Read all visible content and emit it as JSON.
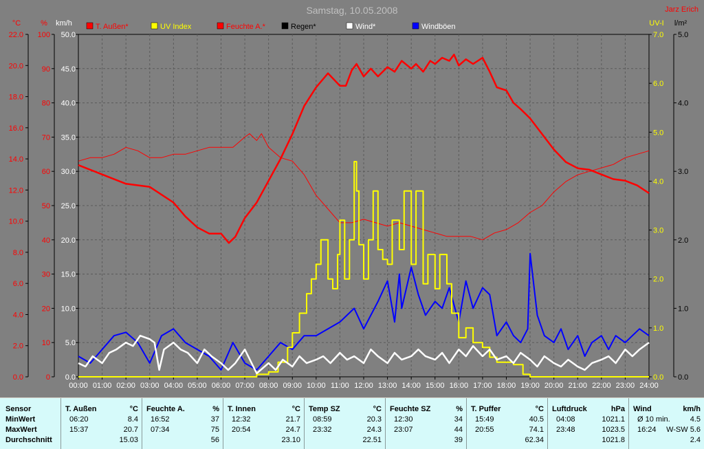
{
  "title": "Samstag, 10.05.2008",
  "author": "Jarz Erich",
  "colors": {
    "temp_out": "#ff0000",
    "uv": "#ffff00",
    "humidity": "#ff0000",
    "rain": "#000000",
    "wind": "#ffffff",
    "gusts": "#0000ff",
    "grid": "#5a5a5a",
    "plot_bg": "#808080"
  },
  "chart_data": {
    "type": "line",
    "title": "Samstag, 10.05.2008",
    "x_ticks": [
      "00:00",
      "01:00",
      "02:00",
      "03:00",
      "04:00",
      "05:00",
      "06:00",
      "07:00",
      "08:00",
      "09:00",
      "10:00",
      "11:00",
      "12:00",
      "13:00",
      "14:00",
      "15:00",
      "16:00",
      "17:00",
      "18:00",
      "19:00",
      "20:00",
      "21:00",
      "22:00",
      "23:00",
      "24:00"
    ],
    "axes": {
      "temp": {
        "unit_label": "°C",
        "ticks": [
          "22.0",
          "20.0",
          "18.0",
          "16.0",
          "14.0",
          "12.0",
          "10.0",
          "8.0",
          "6.0",
          "4.0",
          "2.0",
          "0.0"
        ],
        "range": [
          0,
          22
        ]
      },
      "humidity": {
        "unit_label": "%",
        "ticks": [
          "100",
          "90",
          "80",
          "70",
          "60",
          "50",
          "40",
          "30",
          "20",
          "10",
          "0"
        ],
        "range": [
          0,
          100
        ]
      },
      "wind": {
        "unit_label": "km/h",
        "ticks": [
          "50.0",
          "45.0",
          "40.0",
          "35.0",
          "30.0",
          "25.0",
          "20.0",
          "15.0",
          "10.0",
          "5.0",
          "0.0"
        ],
        "range": [
          0,
          50
        ]
      },
      "uv": {
        "unit_label": "UV-I",
        "ticks": [
          "7.0",
          "6.0",
          "5.0",
          "4.0",
          "3.0",
          "2.0",
          "1.0",
          "0.0"
        ],
        "range": [
          0,
          7
        ]
      },
      "rain": {
        "unit_label": "l/m²",
        "ticks": [
          "5.0",
          "4.0",
          "3.0",
          "2.0",
          "1.0",
          "0.0"
        ],
        "range": [
          0,
          5
        ]
      }
    },
    "legend": [
      {
        "name": "T. Außen*",
        "color": "#ff0000",
        "text_color": "#ff0000"
      },
      {
        "name": "UV Index",
        "color": "#ffff00",
        "text_color": "#ffff00"
      },
      {
        "name": "Feuchte A.*",
        "color": "#ff0000",
        "text_color": "#ff0000"
      },
      {
        "name": "Regen*",
        "color": "#000000",
        "text_color": "#000000"
      },
      {
        "name": "Wind*",
        "color": "#ffffff",
        "text_color": "#ffffff"
      },
      {
        "name": "Windböen",
        "color": "#0000ff",
        "text_color": "#ffffff"
      }
    ],
    "grid": true,
    "series": [
      {
        "name": "T. Außen*",
        "axis": "temp",
        "x_hours": [
          0,
          1,
          2,
          3,
          4,
          4.5,
          5,
          5.5,
          6,
          6.33,
          6.6,
          7,
          7.5,
          8,
          8.5,
          9,
          9.5,
          10,
          10.5,
          11,
          11.25,
          11.5,
          11.7,
          12,
          12.3,
          12.6,
          13,
          13.3,
          13.6,
          14,
          14.2,
          14.5,
          14.8,
          15,
          15.3,
          15.6,
          15.8,
          16,
          16.3,
          16.6,
          17,
          17.3,
          17.6,
          18,
          18.3,
          18.6,
          19,
          19.5,
          20,
          20.5,
          21,
          21.5,
          22,
          22.5,
          23,
          23.5,
          24
        ],
        "values": [
          13.6,
          13.0,
          12.4,
          12.2,
          11.2,
          10.3,
          9.6,
          9.2,
          9.2,
          8.6,
          9.0,
          10.2,
          11.2,
          12.6,
          14.0,
          15.6,
          17.4,
          18.6,
          19.5,
          18.7,
          18.7,
          19.7,
          20.1,
          19.3,
          19.8,
          19.3,
          19.9,
          19.6,
          20.3,
          19.8,
          20.1,
          19.6,
          20.3,
          20.1,
          20.5,
          20.3,
          20.7,
          20.0,
          20.4,
          20.1,
          20.5,
          19.6,
          18.6,
          18.4,
          17.6,
          17.2,
          16.6,
          15.6,
          14.6,
          13.8,
          13.4,
          13.3,
          13.0,
          12.7,
          12.6,
          12.3,
          11.8
        ]
      },
      {
        "name": "Feuchte A.*",
        "axis": "humidity",
        "x_hours": [
          0,
          0.5,
          1,
          1.5,
          2,
          2.5,
          3,
          3.5,
          4,
          4.5,
          5,
          5.5,
          6,
          6.5,
          7,
          7.2,
          7.5,
          7.7,
          8,
          8.5,
          9,
          9.5,
          10,
          10.5,
          11,
          11.5,
          12,
          12.5,
          13,
          13.5,
          14,
          14.5,
          15,
          15.5,
          16,
          16.5,
          17,
          17.5,
          18,
          18.5,
          19,
          19.5,
          20,
          20.5,
          21,
          21.5,
          22,
          22.5,
          23,
          23.5,
          24
        ],
        "values": [
          63,
          64,
          64,
          65,
          67,
          66,
          64,
          64,
          65,
          65,
          66,
          67,
          67,
          67,
          70,
          71,
          69,
          71,
          67,
          64,
          63,
          59,
          53,
          49,
          45,
          45,
          46,
          45,
          44,
          45,
          44,
          43,
          42,
          41,
          41,
          41,
          40,
          42,
          43,
          45,
          48,
          50,
          54,
          57,
          59,
          60,
          61,
          62,
          64,
          65,
          66
        ]
      },
      {
        "name": "UV Index",
        "axis": "uv",
        "x_hours": [
          0,
          7.3,
          7.5,
          8,
          8.4,
          8.8,
          9,
          9.3,
          9.6,
          9.8,
          10,
          10.2,
          10.5,
          10.7,
          10.9,
          11,
          11.2,
          11.4,
          11.6,
          11.7,
          11.8,
          12,
          12.2,
          12.4,
          12.6,
          12.8,
          13,
          13.2,
          13.5,
          13.7,
          14,
          14.2,
          14.5,
          14.7,
          15,
          15.2,
          15.5,
          15.7,
          16,
          16.3,
          16.6,
          17,
          17.3,
          17.6,
          18,
          18.3,
          18.7,
          19,
          24
        ],
        "values": [
          0,
          0,
          0.05,
          0.1,
          0.3,
          0.6,
          0.9,
          1.3,
          1.7,
          2.0,
          2.3,
          2.8,
          2.0,
          1.8,
          2.5,
          3.2,
          2.0,
          2.8,
          4.4,
          3.8,
          2.7,
          2.0,
          2.8,
          3.8,
          2.6,
          2.4,
          2.3,
          3.2,
          2.6,
          3.8,
          2.3,
          3.8,
          1.9,
          2.5,
          1.8,
          2.5,
          1.9,
          1.3,
          0.8,
          1.0,
          0.7,
          0.6,
          0.4,
          0.3,
          0.3,
          0.25,
          0.05,
          0,
          0
        ]
      },
      {
        "name": "Wind*",
        "axis": "wind",
        "x_hours": [
          0,
          0.3,
          0.6,
          1,
          1.3,
          1.6,
          2,
          2.3,
          2.6,
          3,
          3.2,
          3.4,
          3.6,
          4,
          4.3,
          4.6,
          5,
          5.3,
          5.6,
          6,
          6.3,
          6.6,
          7,
          7.5,
          8,
          8.3,
          8.6,
          9,
          9.3,
          9.6,
          10,
          10.3,
          10.6,
          11,
          11.3,
          11.6,
          12,
          12.3,
          12.6,
          13,
          13.3,
          13.6,
          14,
          14.3,
          14.6,
          15,
          15.3,
          15.6,
          16,
          16.3,
          16.6,
          17,
          17.3,
          17.6,
          18,
          18.3,
          18.6,
          19,
          19.3,
          19.6,
          20,
          20.3,
          20.6,
          21,
          21.3,
          21.6,
          22,
          22.3,
          22.6,
          23,
          23.3,
          23.6,
          24
        ],
        "values": [
          2,
          1.5,
          3,
          2,
          3.5,
          4,
          5,
          4.5,
          6,
          5.5,
          5,
          1,
          4,
          5,
          4,
          3.5,
          2,
          4,
          3,
          2,
          1,
          2,
          4,
          0.5,
          2,
          1,
          2.5,
          1.5,
          3,
          2,
          2.5,
          3,
          2,
          3.5,
          2.5,
          3,
          2,
          4,
          3,
          2,
          3.5,
          2.5,
          3,
          4,
          3,
          2.5,
          3.5,
          2,
          4,
          3,
          4.5,
          3,
          4,
          2.5,
          3,
          2,
          3.5,
          2.5,
          1.5,
          3,
          2,
          1.5,
          2.5,
          1.5,
          1,
          2,
          2.5,
          3,
          2,
          4,
          3,
          4,
          5
        ]
      },
      {
        "name": "Windböen",
        "axis": "wind",
        "x_hours": [
          0,
          0.5,
          1,
          1.5,
          2,
          2.5,
          3,
          3.5,
          4,
          4.5,
          5,
          5.5,
          6,
          6.5,
          7,
          7.5,
          8,
          8.5,
          9,
          9.5,
          10,
          10.5,
          11,
          11.3,
          11.6,
          12,
          12.3,
          12.6,
          13,
          13.3,
          13.5,
          13.6,
          14,
          14.3,
          14.6,
          15,
          15.3,
          15.6,
          16,
          16.3,
          16.6,
          17,
          17.3,
          17.6,
          18,
          18.3,
          18.6,
          18.9,
          19,
          19.3,
          19.6,
          20,
          20.3,
          20.6,
          21,
          21.3,
          21.6,
          22,
          22.3,
          22.6,
          23,
          23.3,
          23.6,
          24
        ],
        "values": [
          3,
          2,
          4,
          6,
          6.5,
          5,
          2,
          6,
          7,
          5,
          4,
          3,
          1,
          5,
          2,
          1,
          3,
          5,
          4,
          6,
          6,
          7,
          8,
          9,
          10,
          7,
          9,
          11,
          14,
          8,
          15,
          10,
          16,
          12,
          9,
          11,
          10,
          13,
          8,
          14,
          10,
          13,
          12,
          6,
          8,
          6,
          5,
          7,
          18,
          9,
          6,
          5,
          7,
          4,
          6,
          3,
          5,
          6,
          4,
          6,
          5,
          6,
          7,
          6
        ]
      },
      {
        "name": "Regen*",
        "axis": "rain",
        "x_hours": [
          0,
          24
        ],
        "values": [
          0,
          0
        ]
      }
    ]
  },
  "stats": {
    "columns": [
      {
        "header": "Sensor",
        "unit": "",
        "rows": [
          "MinWert",
          "MaxWert",
          "Durchschnitt"
        ]
      },
      {
        "header": "T. Außen",
        "unit": "°C",
        "min_time": "06:20",
        "min_val": "8.4",
        "max_time": "15:37",
        "max_val": "20.7",
        "avg": "15.03"
      },
      {
        "header": "Feuchte A.",
        "unit": "%",
        "min_time": "16:52",
        "min_val": "37",
        "max_time": "07:34",
        "max_val": "75",
        "avg": "56"
      },
      {
        "header": "T. Innen",
        "unit": "°C",
        "min_time": "12:32",
        "min_val": "21.7",
        "max_time": "20:54",
        "max_val": "24.7",
        "avg": "23.10"
      },
      {
        "header": "Temp SZ",
        "unit": "°C",
        "min_time": "08:59",
        "min_val": "20.3",
        "max_time": "23:32",
        "max_val": "24.3",
        "avg": "22.51"
      },
      {
        "header": "Feuchte SZ",
        "unit": "%",
        "min_time": "12:30",
        "min_val": "34",
        "max_time": "23:07",
        "max_val": "44",
        "avg": "39"
      },
      {
        "header": "T. Puffer",
        "unit": "°C",
        "min_time": "15:49",
        "min_val": "40.5",
        "max_time": "20:55",
        "max_val": "74.1",
        "avg": "62.34"
      },
      {
        "header": "Luftdruck",
        "unit": "hPa",
        "min_time": "04:08",
        "min_val": "1021.1",
        "max_time": "23:48",
        "max_val": "1023.5",
        "avg": "1021.8"
      },
      {
        "header": "Wind",
        "unit": "km/h",
        "min_time": "Ø 10 min.",
        "min_val": "4.5",
        "max_time": "16:24",
        "max_val": "W-SW 5.6",
        "avg": "2.4"
      }
    ]
  }
}
